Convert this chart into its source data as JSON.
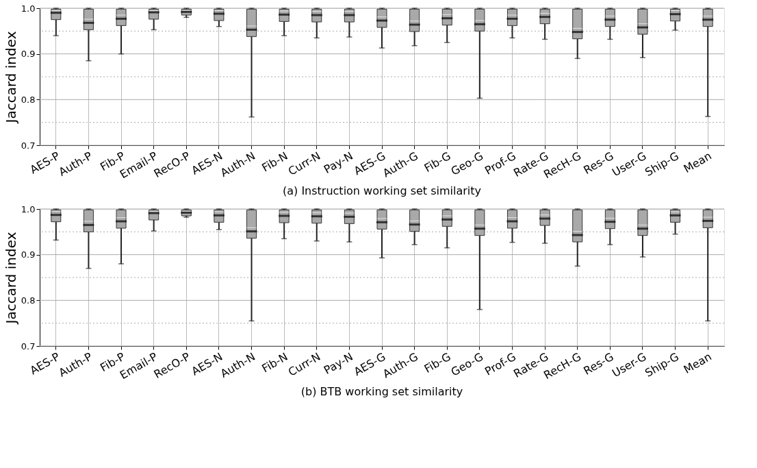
{
  "chart_data": [
    {
      "type": "box",
      "title": "(a) Instruction working set similarity",
      "ylabel": "Jaccard index",
      "color": "#a9a9a9",
      "grid": true,
      "categories": [
        "AES-P",
        "Auth-P",
        "Fib-P",
        "Email-P",
        "RecO-P",
        "AES-N",
        "Auth-N",
        "Fib-N",
        "Curr-N",
        "Pay-N",
        "AES-G",
        "Auth-G",
        "Fib-G",
        "Geo-G",
        "Prof-G",
        "Rate-G",
        "RecH-G",
        "Res-G",
        "User-G",
        "Ship-G",
        "Mean"
      ],
      "ylim": [
        0.7,
        1.0
      ],
      "yticks": [
        0.7,
        {
          "value": 0.75,
          "label": null
        },
        0.8,
        {
          "value": 0.85,
          "label": null
        },
        0.9,
        {
          "value": 0.95,
          "label": null
        },
        {
          "value": 1.0,
          "label": "1.0"
        }
      ],
      "boxes": [
        {
          "low": 0.94,
          "q1": 0.975,
          "median": 0.995,
          "q3": 0.998,
          "high": 1.0,
          "mean": 0.99
        },
        {
          "low": 0.885,
          "q1": 0.953,
          "median": 0.976,
          "q3": 0.998,
          "high": 1.0,
          "mean": 0.968
        },
        {
          "low": 0.9,
          "q1": 0.962,
          "median": 0.985,
          "q3": 0.998,
          "high": 1.0,
          "mean": 0.977
        },
        {
          "low": 0.953,
          "q1": 0.976,
          "median": 0.995,
          "q3": 0.998,
          "high": 1.0,
          "mean": 0.991
        },
        {
          "low": 0.98,
          "q1": 0.985,
          "median": 0.995,
          "q3": 0.998,
          "high": 1.0,
          "mean": 0.992
        },
        {
          "low": 0.96,
          "q1": 0.973,
          "median": 0.995,
          "q3": 0.998,
          "high": 1.0,
          "mean": 0.988
        },
        {
          "low": 0.762,
          "q1": 0.938,
          "median": 0.961,
          "q3": 0.998,
          "high": 1.0,
          "mean": 0.953
        },
        {
          "low": 0.94,
          "q1": 0.971,
          "median": 0.994,
          "q3": 0.998,
          "high": 1.0,
          "mean": 0.986
        },
        {
          "low": 0.935,
          "q1": 0.97,
          "median": 0.993,
          "q3": 0.998,
          "high": 1.0,
          "mean": 0.985
        },
        {
          "low": 0.937,
          "q1": 0.97,
          "median": 0.993,
          "q3": 0.998,
          "high": 1.0,
          "mean": 0.985
        },
        {
          "low": 0.913,
          "q1": 0.958,
          "median": 0.981,
          "q3": 0.998,
          "high": 1.0,
          "mean": 0.973
        },
        {
          "low": 0.918,
          "q1": 0.949,
          "median": 0.972,
          "q3": 0.998,
          "high": 1.0,
          "mean": 0.964
        },
        {
          "low": 0.925,
          "q1": 0.963,
          "median": 0.986,
          "q3": 0.998,
          "high": 1.0,
          "mean": 0.978
        },
        {
          "low": 0.803,
          "q1": 0.95,
          "median": 0.973,
          "q3": 0.998,
          "high": 1.0,
          "mean": 0.965
        },
        {
          "low": 0.935,
          "q1": 0.962,
          "median": 0.985,
          "q3": 0.998,
          "high": 1.0,
          "mean": 0.977
        },
        {
          "low": 0.932,
          "q1": 0.966,
          "median": 0.989,
          "q3": 0.998,
          "high": 1.0,
          "mean": 0.981
        },
        {
          "low": 0.89,
          "q1": 0.933,
          "median": 0.956,
          "q3": 0.998,
          "high": 1.0,
          "mean": 0.948
        },
        {
          "low": 0.932,
          "q1": 0.96,
          "median": 0.983,
          "q3": 0.998,
          "high": 1.0,
          "mean": 0.975
        },
        {
          "low": 0.892,
          "q1": 0.943,
          "median": 0.966,
          "q3": 0.998,
          "high": 1.0,
          "mean": 0.958
        },
        {
          "low": 0.952,
          "q1": 0.972,
          "median": 0.995,
          "q3": 0.998,
          "high": 1.0,
          "mean": 0.987
        },
        {
          "low": 0.763,
          "q1": 0.96,
          "median": 0.983,
          "q3": 0.998,
          "high": 1.0,
          "mean": 0.975
        }
      ]
    },
    {
      "type": "box",
      "title": "(b) BTB working set similarity",
      "ylabel": "Jaccard index",
      "color": "#a9a9a9",
      "grid": true,
      "categories": [
        "AES-P",
        "Auth-P",
        "Fib-P",
        "Email-P",
        "RecO-P",
        "AES-N",
        "Auth-N",
        "Fib-N",
        "Curr-N",
        "Pay-N",
        "AES-G",
        "Auth-G",
        "Fib-G",
        "Geo-G",
        "Prof-G",
        "Rate-G",
        "RecH-G",
        "Res-G",
        "User-G",
        "Ship-G",
        "Mean"
      ],
      "ylim": [
        0.7,
        1.0
      ],
      "yticks": [
        0.7,
        {
          "value": 0.75,
          "label": null
        },
        0.8,
        {
          "value": 0.85,
          "label": null
        },
        0.9,
        {
          "value": 0.95,
          "label": null
        },
        {
          "value": 1.0,
          "label": "1.0"
        }
      ],
      "boxes": [
        {
          "low": 0.932,
          "q1": 0.972,
          "median": 0.995,
          "q3": 0.998,
          "high": 1.0,
          "mean": 0.987
        },
        {
          "low": 0.87,
          "q1": 0.95,
          "median": 0.973,
          "q3": 0.998,
          "high": 1.0,
          "mean": 0.965
        },
        {
          "low": 0.88,
          "q1": 0.958,
          "median": 0.981,
          "q3": 0.998,
          "high": 1.0,
          "mean": 0.973
        },
        {
          "low": 0.952,
          "q1": 0.976,
          "median": 0.995,
          "q3": 0.998,
          "high": 1.0,
          "mean": 0.991
        },
        {
          "low": 0.982,
          "q1": 0.985,
          "median": 0.995,
          "q3": 0.998,
          "high": 1.0,
          "mean": 0.992
        },
        {
          "low": 0.955,
          "q1": 0.971,
          "median": 0.994,
          "q3": 0.998,
          "high": 1.0,
          "mean": 0.986
        },
        {
          "low": 0.755,
          "q1": 0.936,
          "median": 0.959,
          "q3": 0.998,
          "high": 1.0,
          "mean": 0.951
        },
        {
          "low": 0.935,
          "q1": 0.97,
          "median": 0.993,
          "q3": 0.998,
          "high": 1.0,
          "mean": 0.985
        },
        {
          "low": 0.93,
          "q1": 0.969,
          "median": 0.992,
          "q3": 0.998,
          "high": 1.0,
          "mean": 0.984
        },
        {
          "low": 0.928,
          "q1": 0.968,
          "median": 0.991,
          "q3": 0.998,
          "high": 1.0,
          "mean": 0.983
        },
        {
          "low": 0.893,
          "q1": 0.956,
          "median": 0.979,
          "q3": 0.998,
          "high": 1.0,
          "mean": 0.971
        },
        {
          "low": 0.922,
          "q1": 0.951,
          "median": 0.974,
          "q3": 0.998,
          "high": 1.0,
          "mean": 0.966
        },
        {
          "low": 0.915,
          "q1": 0.962,
          "median": 0.985,
          "q3": 0.998,
          "high": 1.0,
          "mean": 0.977
        },
        {
          "low": 0.78,
          "q1": 0.942,
          "median": 0.965,
          "q3": 0.998,
          "high": 1.0,
          "mean": 0.957
        },
        {
          "low": 0.927,
          "q1": 0.958,
          "median": 0.981,
          "q3": 0.998,
          "high": 1.0,
          "mean": 0.973
        },
        {
          "low": 0.925,
          "q1": 0.964,
          "median": 0.987,
          "q3": 0.998,
          "high": 1.0,
          "mean": 0.979
        },
        {
          "low": 0.875,
          "q1": 0.928,
          "median": 0.951,
          "q3": 0.998,
          "high": 1.0,
          "mean": 0.943
        },
        {
          "low": 0.922,
          "q1": 0.957,
          "median": 0.98,
          "q3": 0.998,
          "high": 1.0,
          "mean": 0.972
        },
        {
          "low": 0.895,
          "q1": 0.942,
          "median": 0.965,
          "q3": 0.998,
          "high": 1.0,
          "mean": 0.957
        },
        {
          "low": 0.945,
          "q1": 0.971,
          "median": 0.994,
          "q3": 0.998,
          "high": 1.0,
          "mean": 0.986
        },
        {
          "low": 0.755,
          "q1": 0.959,
          "median": 0.982,
          "q3": 0.998,
          "high": 1.0,
          "mean": 0.974
        }
      ]
    }
  ]
}
